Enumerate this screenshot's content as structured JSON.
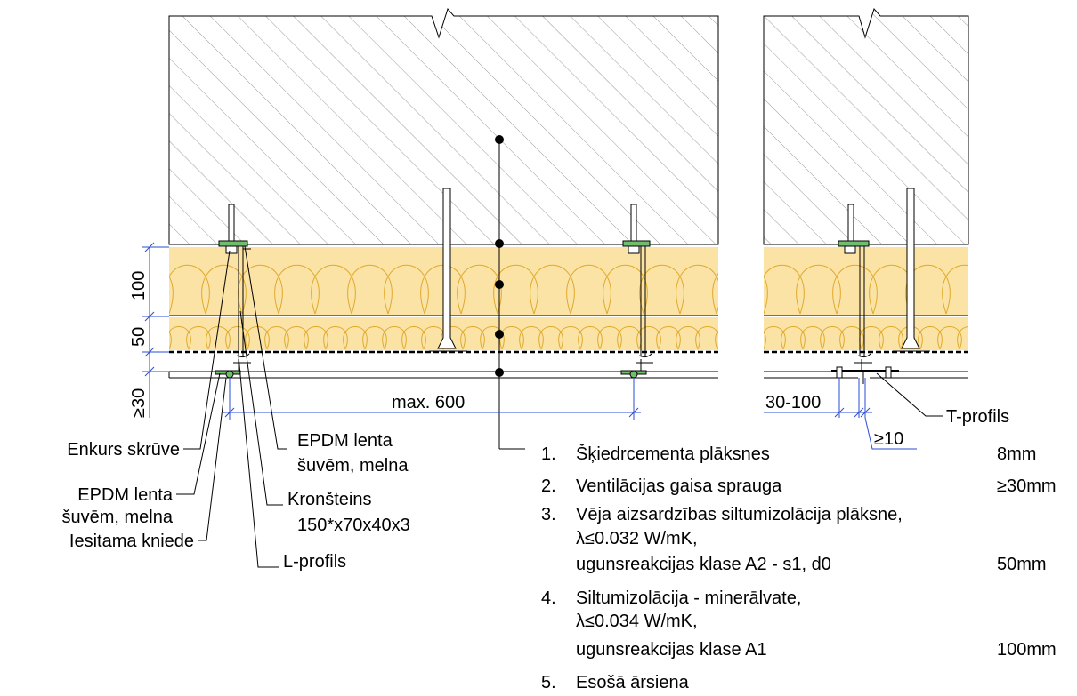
{
  "dimensions": {
    "d100": "100",
    "d50": "50",
    "d30": "≥30",
    "max600": "max. 600",
    "d30_100": "30-100",
    "d10": "≥10"
  },
  "left_labels": {
    "enkurs": "Enkurs skrūve",
    "epdm_left_1": "EPDM lenta",
    "epdm_left_2": "šuvēm, melna",
    "kniede": "Iesitama kniede"
  },
  "mid_labels": {
    "epdm_mid_1": "EPDM lenta",
    "epdm_mid_2": "šuvēm, melna",
    "kronsteins_1": "Kronšteins",
    "kronsteins_2": "150*x70x40x3",
    "lprofils": "L-profils"
  },
  "tprofils": "T-profils",
  "layers": [
    {
      "num": "1.",
      "lines": [
        "Šķiedrcementa plāksnes"
      ],
      "value": "8mm"
    },
    {
      "num": "2.",
      "lines": [
        "Ventilācijas gaisa sprauga"
      ],
      "value": "≥30mm"
    },
    {
      "num": "3.",
      "lines": [
        "Vēja aizsardzības siltumizolācija plāksne,",
        "λ≤0.032 W/mK,",
        "ugunsreakcijas klase A2 - s1, d0"
      ],
      "value": "50mm"
    },
    {
      "num": "4.",
      "lines": [
        "Siltumizolācija - minerālvate,",
        "λ≤0.034 W/mK,",
        "ugunsreakcijas klase A1"
      ],
      "value": "100mm"
    },
    {
      "num": "5.",
      "lines": [
        "Esošā ārsiena"
      ],
      "value": ""
    }
  ],
  "colors": {
    "insulation": "#fbe3a6",
    "insulation_stroke": "#e0a92a",
    "gasket": "#6fbf6a",
    "dimension": "#2b4bd6"
  }
}
